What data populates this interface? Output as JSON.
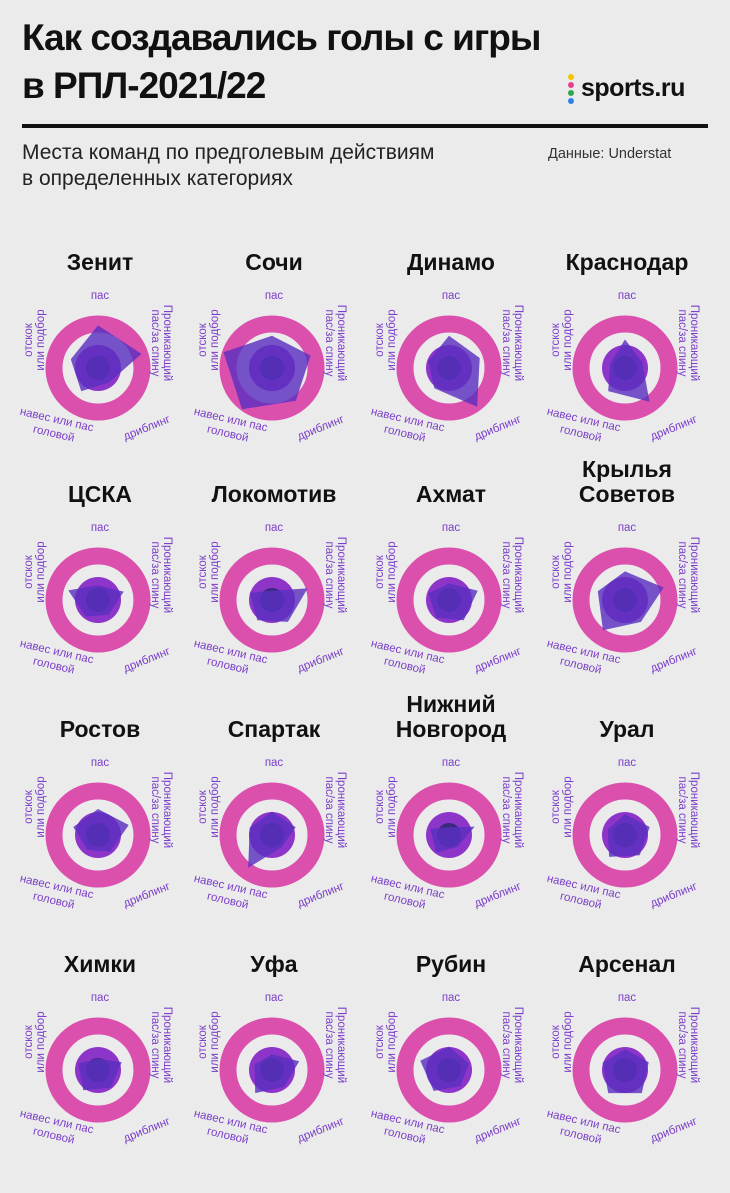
{
  "header": {
    "title_line1": "Как создавались голы с игры",
    "title_line2": "в РПЛ-2021/22",
    "logo_text": "sports.ru",
    "subtitle_line1": "Места команд по предголевым действиям",
    "subtitle_line2": "в определенных категориях",
    "source": "Данные: Understat"
  },
  "colors": {
    "background": "#ebebeb",
    "ring": "#db4fad",
    "mid_disc": "#8e35c9",
    "center_disc": "#3a2a7e",
    "polygon": "#5a2fc0",
    "label": "#7b3fc9",
    "logo_dots": [
      "#f5c400",
      "#e83e8c",
      "#2ea84a",
      "#2f80ed"
    ]
  },
  "axis_labels": {
    "pass": "пас",
    "through_line1": "Проникающий",
    "through_line2": "пас/за спину",
    "dribble": "дриблинг",
    "cross_line1": "навес или пас",
    "cross_line2": "головой",
    "rebound_line1": "отскок",
    "rebound_line2": "или подбор"
  },
  "chart_data": {
    "type": "radar",
    "axes": [
      "пас",
      "Проникающий пас/за спину",
      "дриблинг",
      "навес или пас головой",
      "отскок или подбор"
    ],
    "scale_note": "Места команд по предголевым действиям",
    "teams": [
      {
        "name": [
          "Зенит"
        ],
        "values": [
          0.82,
          0.88,
          0.35,
          0.55,
          0.55
        ]
      },
      {
        "name": [
          "Сочи"
        ],
        "values": [
          0.62,
          0.78,
          0.78,
          0.98,
          0.98
        ]
      },
      {
        "name": [
          "Динамо"
        ],
        "values": [
          0.62,
          0.62,
          0.92,
          0.48,
          0.42
        ]
      },
      {
        "name": [
          "Краснодар"
        ],
        "values": [
          0.55,
          0.35,
          0.8,
          0.55,
          0.3
        ]
      },
      {
        "name": [
          "ЦСКА"
        ],
        "values": [
          0.28,
          0.52,
          0.35,
          0.4,
          0.6
        ]
      },
      {
        "name": [
          "Локомотив"
        ],
        "values": [
          0.18,
          0.72,
          0.52,
          0.48,
          0.45
        ]
      },
      {
        "name": [
          "Ахмат"
        ],
        "values": [
          0.32,
          0.58,
          0.48,
          0.42,
          0.42
        ]
      },
      {
        "name": [
          "Крылья",
          "Советов"
        ],
        "values": [
          0.55,
          0.78,
          0.52,
          0.72,
          0.55
        ]
      },
      {
        "name": [
          "Ростов"
        ],
        "values": [
          0.5,
          0.62,
          0.4,
          0.35,
          0.5
        ]
      },
      {
        "name": [
          "Спартак"
        ],
        "values": [
          0.45,
          0.48,
          0.3,
          0.78,
          0.45
        ]
      },
      {
        "name": [
          "Нижний",
          "Новгород"
        ],
        "values": [
          0.15,
          0.52,
          0.28,
          0.42,
          0.38
        ]
      },
      {
        "name": [
          "Урал"
        ],
        "values": [
          0.4,
          0.5,
          0.48,
          0.52,
          0.35
        ]
      },
      {
        "name": [
          "Химки"
        ],
        "values": [
          0.22,
          0.48,
          0.42,
          0.48,
          0.4
        ]
      },
      {
        "name": [
          "Уфа"
        ],
        "values": [
          0.3,
          0.55,
          0.4,
          0.55,
          0.35
        ]
      },
      {
        "name": [
          "Рубин"
        ],
        "values": [
          0.45,
          0.4,
          0.38,
          0.5,
          0.58
        ]
      },
      {
        "name": [
          "Арсенал"
        ],
        "values": [
          0.4,
          0.48,
          0.55,
          0.55,
          0.45
        ]
      }
    ]
  }
}
